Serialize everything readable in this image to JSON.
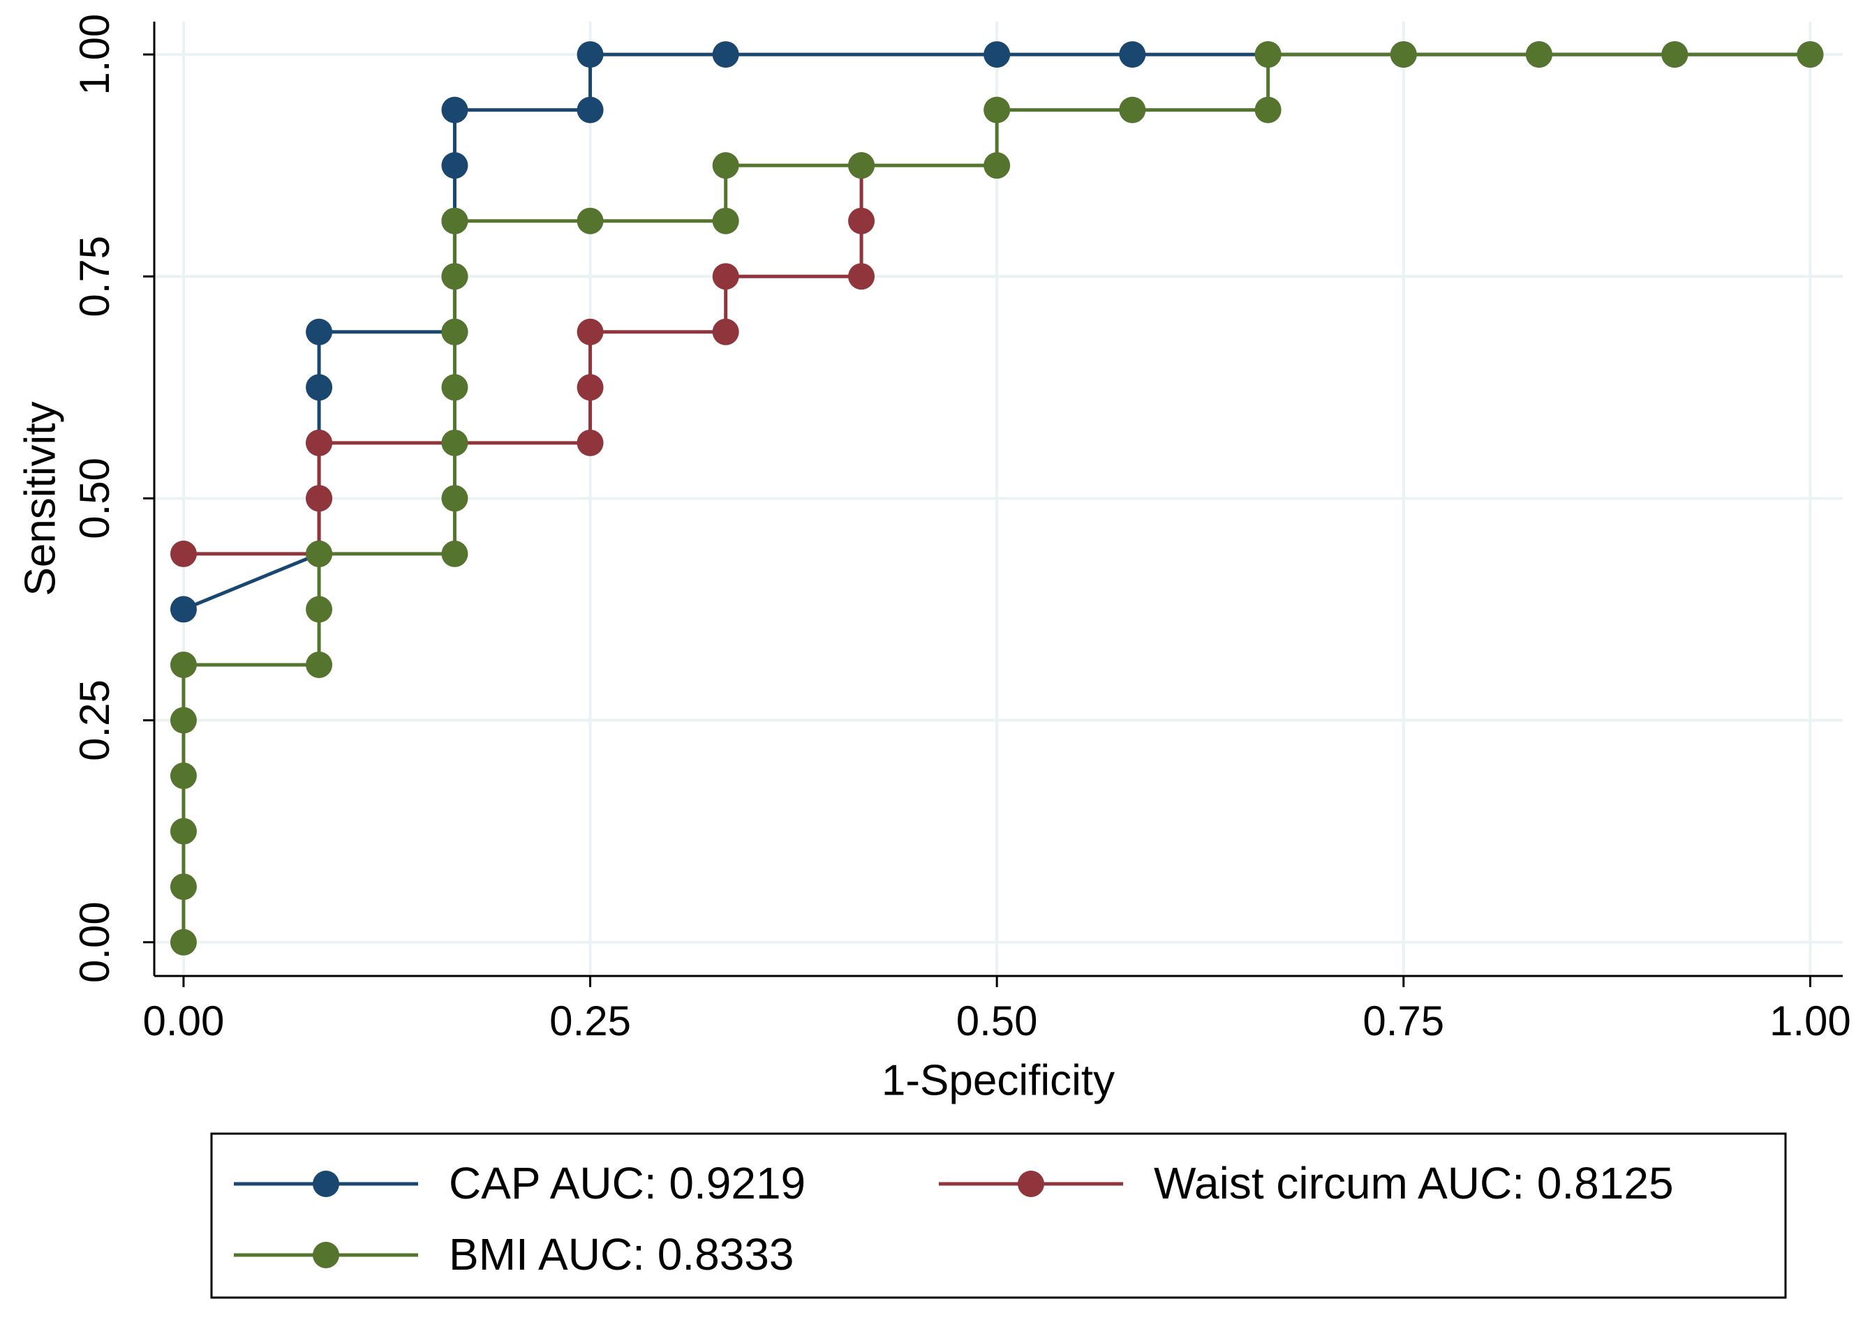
{
  "chart_data": {
    "type": "line",
    "xlabel": "1-Specificity",
    "ylabel": "Sensitivity",
    "xlim": [
      -0.018,
      1.02
    ],
    "ylim": [
      -0.038,
      1.037
    ],
    "xticks": [
      {
        "value": 0,
        "label": "0.00"
      },
      {
        "value": 0.25,
        "label": "0.25"
      },
      {
        "value": 0.5,
        "label": "0.50"
      },
      {
        "value": 0.75,
        "label": "0.75"
      },
      {
        "value": 1,
        "label": "1.00"
      }
    ],
    "yticks": [
      {
        "value": 0,
        "label": "0.00"
      },
      {
        "value": 0.25,
        "label": "0.25"
      },
      {
        "value": 0.5,
        "label": "0.50"
      },
      {
        "value": 0.75,
        "label": "0.75"
      },
      {
        "value": 1,
        "label": "1.00"
      }
    ],
    "grid": true,
    "series": [
      {
        "name": "CAP AUC: 0.9219",
        "color": "#1a476f",
        "x": [
          0,
          0.0833,
          0.0833,
          0.0833,
          0.0833,
          0.0833,
          0.1667,
          0.1667,
          0.1667,
          0.1667,
          0.1667,
          0.25,
          0.25,
          0.3333,
          0.5,
          0.5833,
          0.6667,
          0.75,
          0.8333,
          0.9167,
          1
        ],
        "values": [
          0.375,
          0.4375,
          0.5,
          0.5625,
          0.625,
          0.6875,
          0.6875,
          0.75,
          0.8125,
          0.875,
          0.9375,
          0.9375,
          1,
          1,
          1,
          1,
          1,
          1,
          1,
          1,
          1
        ]
      },
      {
        "name": "Waist circum AUC: 0.8125",
        "color": "#90353b",
        "x": [
          0,
          0.0833,
          0.0833,
          0.0833,
          0.25,
          0.25,
          0.25,
          0.3333,
          0.3333,
          0.4167,
          0.4167,
          0.4167
        ],
        "values": [
          0.4375,
          0.4375,
          0.5,
          0.5625,
          0.5625,
          0.625,
          0.6875,
          0.6875,
          0.75,
          0.75,
          0.8125,
          0.875
        ]
      },
      {
        "name": "BMI AUC: 0.8333",
        "color": "#55752f",
        "x": [
          0,
          0,
          0,
          0,
          0,
          0,
          0.0833,
          0.0833,
          0.0833,
          0.1667,
          0.1667,
          0.1667,
          0.1667,
          0.1667,
          0.1667,
          0.1667,
          0.25,
          0.3333,
          0.3333,
          0.4167,
          0.5,
          0.5,
          0.5833,
          0.6667,
          0.6667,
          0.75,
          0.8333,
          0.9167,
          1
        ],
        "values": [
          0,
          0.0625,
          0.125,
          0.1875,
          0.25,
          0.3125,
          0.3125,
          0.375,
          0.4375,
          0.4375,
          0.5,
          0.5625,
          0.625,
          0.6875,
          0.75,
          0.8125,
          0.8125,
          0.8125,
          0.875,
          0.875,
          0.875,
          0.9375,
          0.9375,
          0.9375,
          1,
          1,
          1,
          1,
          1
        ]
      }
    ]
  }
}
